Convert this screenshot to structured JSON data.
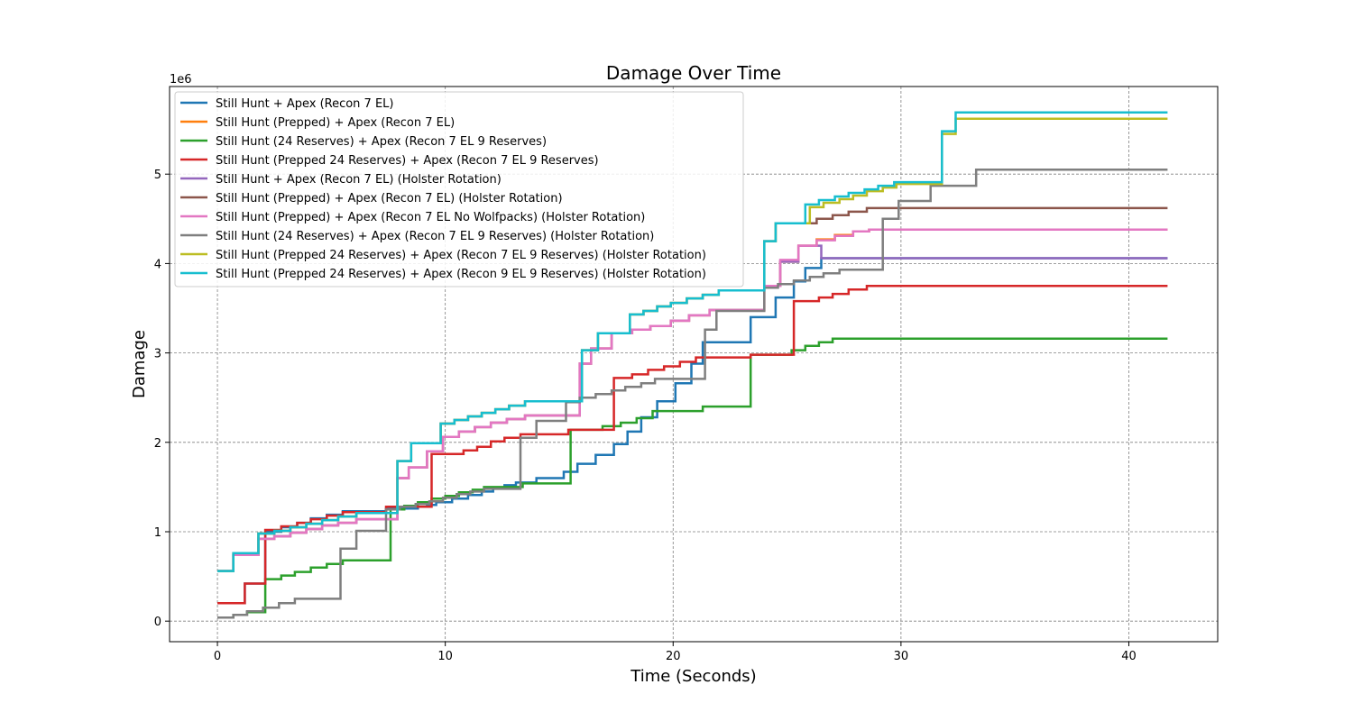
{
  "chart_data": {
    "type": "line",
    "step": "post",
    "title": "Damage Over Time",
    "xlabel": "Time (Seconds)",
    "ylabel": "Damage",
    "y_offset_text": "1e6",
    "y_scale": 1000000,
    "xlim": [
      -2.1,
      43.9
    ],
    "ylim": [
      -0.23,
      5.98
    ],
    "x_ticks": [
      0,
      10,
      20,
      30,
      40
    ],
    "y_ticks": [
      0,
      1,
      2,
      3,
      4,
      5
    ],
    "grid": true,
    "legend_position": "top-left",
    "series": [
      {
        "name": "Still Hunt + Apex (Recon 7 EL)",
        "color": "#1f77b4",
        "x": [
          0,
          1.2,
          2.1,
          2.8,
          3.5,
          4.1,
          4.8,
          5.5,
          7.4,
          8.8,
          9.2,
          9.6,
          10.3,
          11.0,
          11.6,
          12.1,
          12.6,
          13.1,
          14.0,
          15.2,
          15.8,
          16.6,
          17.4,
          18.0,
          18.6,
          19.3,
          20.1,
          20.8,
          21.3,
          23.4,
          24.5,
          25.3,
          25.8,
          26.5,
          41.7
        ],
        "y": [
          0.2,
          0.42,
          1.0,
          1.05,
          1.1,
          1.15,
          1.19,
          1.23,
          1.26,
          1.28,
          1.3,
          1.33,
          1.37,
          1.41,
          1.45,
          1.49,
          1.52,
          1.55,
          1.6,
          1.67,
          1.76,
          1.86,
          1.98,
          2.12,
          2.28,
          2.46,
          2.66,
          2.88,
          3.12,
          3.4,
          3.62,
          3.8,
          3.95,
          4.06,
          4.06
        ]
      },
      {
        "name": "Still Hunt (Prepped) + Apex (Recon 7 EL)",
        "color": "#ff7f0e",
        "x": [
          0,
          0.7,
          1.8,
          2.5,
          3.2,
          3.9,
          4.6,
          5.3,
          6.1,
          7.9,
          8.4,
          9.2,
          9.9,
          10.6,
          11.3,
          12.0,
          12.7,
          13.5,
          15.9,
          16.4,
          17.3,
          18.2,
          19.0,
          19.9,
          20.7,
          21.6,
          22.5,
          24.0,
          24.7,
          25.5,
          26.3,
          27.1,
          27.9,
          28.6,
          41.7
        ],
        "y": [
          0.56,
          0.74,
          0.92,
          0.95,
          0.99,
          1.03,
          1.07,
          1.1,
          1.14,
          1.6,
          1.72,
          1.9,
          2.06,
          2.12,
          2.17,
          2.22,
          2.26,
          2.3,
          2.88,
          3.05,
          3.22,
          3.26,
          3.3,
          3.36,
          3.42,
          3.48,
          3.48,
          3.75,
          4.02,
          4.2,
          4.27,
          4.32,
          4.36,
          4.38,
          4.38
        ]
      },
      {
        "name": "Still Hunt (24 Reserves) + Apex (Recon 7 EL 9 Reserves)",
        "color": "#2ca02c",
        "x": [
          0,
          0.7,
          1.3,
          2.1,
          2.8,
          3.4,
          4.1,
          4.8,
          5.5,
          7.6,
          8.2,
          8.8,
          9.4,
          10.0,
          10.6,
          11.2,
          11.7,
          13.4,
          15.5,
          16.9,
          17.7,
          18.4,
          19.1,
          21.3,
          23.4,
          25.2,
          25.8,
          26.4,
          27.0,
          41.7
        ],
        "y": [
          0.04,
          0.07,
          0.1,
          0.47,
          0.51,
          0.55,
          0.6,
          0.64,
          0.68,
          1.25,
          1.29,
          1.33,
          1.37,
          1.4,
          1.44,
          1.47,
          1.5,
          1.54,
          2.14,
          2.18,
          2.22,
          2.27,
          2.35,
          2.4,
          2.98,
          3.03,
          3.08,
          3.12,
          3.16,
          3.16
        ]
      },
      {
        "name": "Still Hunt (Prepped 24 Reserves) + Apex (Recon 7 EL 9 Reserves)",
        "color": "#d62728",
        "x": [
          0,
          1.2,
          2.1,
          2.8,
          3.5,
          4.1,
          4.8,
          5.5,
          7.4,
          8.8,
          9.4,
          10.8,
          11.4,
          12.0,
          12.6,
          13.3,
          15.4,
          17.4,
          18.2,
          18.9,
          19.6,
          20.3,
          21.0,
          23.4,
          25.3,
          26.4,
          27.0,
          27.7,
          28.5,
          41.7
        ],
        "y": [
          0.2,
          0.42,
          1.02,
          1.06,
          1.1,
          1.14,
          1.18,
          1.22,
          1.28,
          1.28,
          1.87,
          1.91,
          1.95,
          2.01,
          2.05,
          2.09,
          2.14,
          2.72,
          2.76,
          2.81,
          2.85,
          2.9,
          2.95,
          2.98,
          3.58,
          3.62,
          3.66,
          3.71,
          3.75,
          3.75
        ]
      },
      {
        "name": "Still Hunt + Apex (Recon 7 EL) (Holster Rotation)",
        "color": "#9467bd",
        "x": [
          0,
          0.7,
          1.8,
          2.5,
          3.2,
          3.9,
          4.6,
          5.3,
          6.1,
          7.9,
          8.4,
          9.2,
          9.9,
          10.6,
          11.3,
          12.0,
          12.7,
          13.5,
          15.9,
          16.4,
          17.3,
          18.2,
          19.0,
          19.9,
          20.7,
          21.6,
          22.5,
          24.0,
          24.7,
          25.5,
          26.5,
          41.7
        ],
        "y": [
          0.56,
          0.74,
          0.92,
          0.95,
          0.99,
          1.03,
          1.07,
          1.1,
          1.14,
          1.6,
          1.72,
          1.9,
          2.06,
          2.12,
          2.17,
          2.22,
          2.26,
          2.3,
          2.88,
          3.05,
          3.22,
          3.26,
          3.3,
          3.36,
          3.42,
          3.48,
          3.48,
          3.75,
          4.02,
          4.2,
          4.06,
          4.06
        ]
      },
      {
        "name": "Still Hunt (Prepped) + Apex (Recon 7 EL) (Holster Rotation)",
        "color": "#8c564b",
        "x": [
          0,
          0.7,
          1.8,
          2.5,
          3.2,
          3.9,
          4.6,
          5.3,
          6.1,
          7.9,
          8.5,
          9.8,
          10.4,
          11.0,
          11.6,
          12.2,
          12.8,
          13.5,
          16.0,
          16.7,
          18.1,
          18.7,
          19.3,
          19.9,
          20.6,
          21.3,
          22.0,
          24.0,
          24.5,
          25.6,
          26.3,
          27.0,
          27.7,
          28.5,
          41.7
        ],
        "y": [
          0.56,
          0.76,
          0.98,
          1.01,
          1.05,
          1.09,
          1.13,
          1.17,
          1.21,
          1.79,
          1.99,
          2.21,
          2.25,
          2.29,
          2.33,
          2.37,
          2.41,
          2.46,
          3.03,
          3.22,
          3.43,
          3.47,
          3.52,
          3.56,
          3.61,
          3.65,
          3.7,
          4.25,
          4.45,
          4.45,
          4.5,
          4.54,
          4.58,
          4.62,
          4.62
        ]
      },
      {
        "name": "Still Hunt (Prepped) + Apex (Recon 7 EL No Wolfpacks) (Holster Rotation)",
        "color": "#e377c2",
        "x": [
          0,
          0.7,
          1.8,
          2.5,
          3.2,
          3.9,
          4.6,
          5.3,
          6.1,
          7.9,
          8.4,
          9.2,
          9.9,
          10.6,
          11.3,
          12.0,
          12.7,
          13.5,
          15.9,
          16.4,
          17.3,
          18.2,
          19.0,
          19.9,
          20.7,
          21.6,
          22.5,
          24.0,
          24.7,
          25.5,
          26.3,
          27.1,
          27.9,
          28.6,
          41.7
        ],
        "y": [
          0.56,
          0.74,
          0.92,
          0.95,
          0.99,
          1.03,
          1.07,
          1.1,
          1.14,
          1.6,
          1.72,
          1.9,
          2.06,
          2.12,
          2.17,
          2.22,
          2.26,
          2.3,
          2.88,
          3.05,
          3.22,
          3.26,
          3.3,
          3.36,
          3.42,
          3.48,
          3.48,
          3.75,
          4.04,
          4.2,
          4.26,
          4.31,
          4.36,
          4.38,
          4.38
        ]
      },
      {
        "name": "Still Hunt (24 Reserves) + Apex (Recon 7 EL 9 Reserves) (Holster Rotation)",
        "color": "#7f7f7f",
        "x": [
          0,
          0.7,
          1.3,
          2.0,
          2.7,
          3.4,
          5.4,
          6.1,
          7.4,
          8.0,
          8.7,
          9.3,
          9.9,
          10.5,
          11.1,
          11.7,
          13.3,
          14.0,
          15.3,
          15.9,
          16.6,
          17.3,
          17.9,
          18.6,
          19.2,
          21.4,
          21.9,
          22.6,
          23.3,
          24.0,
          24.6,
          25.3,
          26.0,
          26.6,
          27.3,
          29.2,
          29.9,
          31.3,
          33.3,
          41.7
        ],
        "y": [
          0.04,
          0.07,
          0.11,
          0.15,
          0.2,
          0.25,
          0.81,
          1.01,
          1.25,
          1.28,
          1.31,
          1.34,
          1.38,
          1.42,
          1.45,
          1.48,
          2.05,
          2.24,
          2.45,
          2.5,
          2.54,
          2.58,
          2.62,
          2.66,
          2.71,
          3.26,
          3.47,
          3.47,
          3.47,
          3.73,
          3.77,
          3.81,
          3.85,
          3.89,
          3.93,
          4.5,
          4.7,
          4.87,
          5.05,
          5.05
        ]
      },
      {
        "name": "Still Hunt (Prepped 24 Reserves) + Apex (Recon 7 EL 9 Reserves) (Holster Rotation)",
        "color": "#bcbd22",
        "x": [
          0,
          0.7,
          1.8,
          2.5,
          3.2,
          3.9,
          4.6,
          5.3,
          6.1,
          7.9,
          8.5,
          9.8,
          10.4,
          11.0,
          11.6,
          12.2,
          12.8,
          13.5,
          16.0,
          16.7,
          18.1,
          18.7,
          19.3,
          19.9,
          20.6,
          21.3,
          22.0,
          24.0,
          24.5,
          26.0,
          26.6,
          27.3,
          27.9,
          28.5,
          29.2,
          29.8,
          31.8,
          32.4,
          41.7
        ],
        "y": [
          0.56,
          0.76,
          0.98,
          1.01,
          1.05,
          1.09,
          1.13,
          1.17,
          1.21,
          1.79,
          1.99,
          2.21,
          2.25,
          2.29,
          2.33,
          2.37,
          2.41,
          2.46,
          3.03,
          3.22,
          3.43,
          3.47,
          3.52,
          3.56,
          3.61,
          3.65,
          3.7,
          4.25,
          4.45,
          4.63,
          4.68,
          4.72,
          4.76,
          4.81,
          4.85,
          4.89,
          5.45,
          5.62,
          5.62
        ]
      },
      {
        "name": "Still Hunt (Prepped 24 Reserves) + Apex (Recon 9 EL 9 Reserves) (Holster Rotation)",
        "color": "#17becf",
        "x": [
          0,
          0.7,
          1.8,
          2.5,
          3.2,
          3.9,
          4.6,
          5.3,
          6.1,
          7.9,
          8.5,
          9.8,
          10.4,
          11.0,
          11.6,
          12.2,
          12.8,
          13.5,
          16.0,
          16.7,
          18.1,
          18.7,
          19.3,
          19.9,
          20.6,
          21.3,
          22.0,
          24.0,
          24.5,
          25.8,
          26.4,
          27.1,
          27.7,
          28.4,
          29.0,
          29.7,
          31.8,
          32.4,
          41.7
        ],
        "y": [
          0.56,
          0.76,
          0.98,
          1.01,
          1.05,
          1.09,
          1.13,
          1.17,
          1.21,
          1.79,
          1.99,
          2.21,
          2.25,
          2.29,
          2.33,
          2.37,
          2.41,
          2.46,
          3.03,
          3.22,
          3.43,
          3.47,
          3.52,
          3.56,
          3.61,
          3.65,
          3.7,
          4.25,
          4.45,
          4.66,
          4.71,
          4.75,
          4.79,
          4.83,
          4.87,
          4.91,
          5.48,
          5.69,
          5.69
        ]
      }
    ]
  }
}
